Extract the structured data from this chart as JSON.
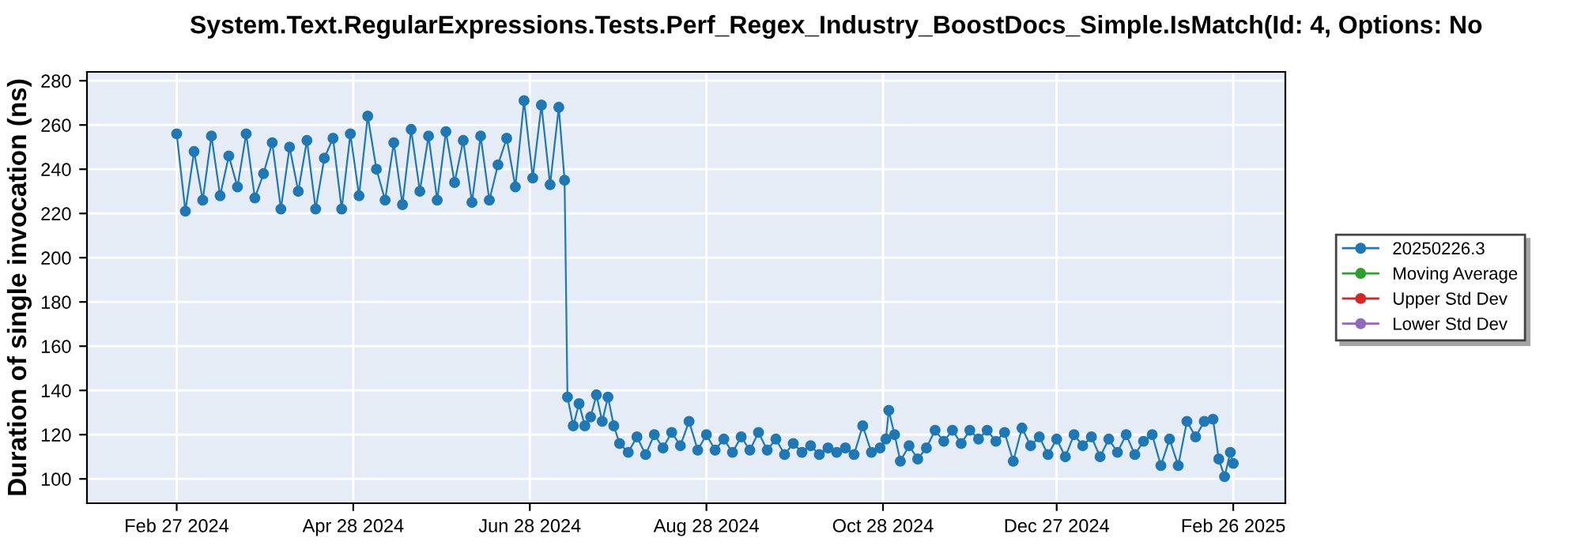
{
  "chart_data": {
    "type": "line",
    "title": "System.Text.RegularExpressions.Tests.Perf_Regex_Industry_BoostDocs_Simple.IsMatch(Id: 4, Options: No",
    "ylabel": "Duration of single invocation (ns)",
    "xlim": [
      "2024-01-27",
      "2025-03-16"
    ],
    "ylim": [
      89,
      284
    ],
    "xticks": [
      {
        "value": "2024-02-27",
        "label": "Feb 27 2024"
      },
      {
        "value": "2024-04-28",
        "label": "Apr 28 2024"
      },
      {
        "value": "2024-06-28",
        "label": "Jun 28 2024"
      },
      {
        "value": "2024-08-28",
        "label": "Aug 28 2024"
      },
      {
        "value": "2024-10-28",
        "label": "Oct 28 2024"
      },
      {
        "value": "2024-12-27",
        "label": "Dec 27 2024"
      },
      {
        "value": "2025-02-26",
        "label": "Feb 26 2025"
      }
    ],
    "yticks": [
      100,
      120,
      140,
      160,
      180,
      200,
      220,
      240,
      260,
      280
    ],
    "grid": true,
    "legend": "right",
    "marker": "circle",
    "line_style": "solid",
    "series": [
      {
        "name": "20250226.3",
        "color": "#1f77b4",
        "x": [
          "2024-02-27",
          "2024-03-01",
          "2024-03-04",
          "2024-03-07",
          "2024-03-10",
          "2024-03-13",
          "2024-03-16",
          "2024-03-19",
          "2024-03-22",
          "2024-03-25",
          "2024-03-28",
          "2024-03-31",
          "2024-04-03",
          "2024-04-06",
          "2024-04-09",
          "2024-04-12",
          "2024-04-15",
          "2024-04-18",
          "2024-04-21",
          "2024-04-24",
          "2024-04-27",
          "2024-04-30",
          "2024-05-03",
          "2024-05-06",
          "2024-05-09",
          "2024-05-12",
          "2024-05-15",
          "2024-05-18",
          "2024-05-21",
          "2024-05-24",
          "2024-05-27",
          "2024-05-30",
          "2024-06-02",
          "2024-06-05",
          "2024-06-08",
          "2024-06-11",
          "2024-06-14",
          "2024-06-17",
          "2024-06-20",
          "2024-06-23",
          "2024-06-26",
          "2024-06-29",
          "2024-07-02",
          "2024-07-05",
          "2024-07-08",
          "2024-07-10",
          "2024-07-11",
          "2024-07-13",
          "2024-07-15",
          "2024-07-17",
          "2024-07-19",
          "2024-07-21",
          "2024-07-23",
          "2024-07-25",
          "2024-07-27",
          "2024-07-29",
          "2024-08-01",
          "2024-08-04",
          "2024-08-07",
          "2024-08-10",
          "2024-08-13",
          "2024-08-16",
          "2024-08-19",
          "2024-08-22",
          "2024-08-25",
          "2024-08-28",
          "2024-08-31",
          "2024-09-03",
          "2024-09-06",
          "2024-09-09",
          "2024-09-12",
          "2024-09-15",
          "2024-09-18",
          "2024-09-21",
          "2024-09-24",
          "2024-09-27",
          "2024-09-30",
          "2024-10-03",
          "2024-10-06",
          "2024-10-09",
          "2024-10-12",
          "2024-10-15",
          "2024-10-18",
          "2024-10-21",
          "2024-10-24",
          "2024-10-27",
          "2024-10-29",
          "2024-10-30",
          "2024-11-01",
          "2024-11-03",
          "2024-11-06",
          "2024-11-09",
          "2024-11-12",
          "2024-11-15",
          "2024-11-18",
          "2024-11-21",
          "2024-11-24",
          "2024-11-27",
          "2024-11-30",
          "2024-12-03",
          "2024-12-06",
          "2024-12-09",
          "2024-12-12",
          "2024-12-15",
          "2024-12-18",
          "2024-12-21",
          "2024-12-24",
          "2024-12-27",
          "2024-12-30",
          "2025-01-02",
          "2025-01-05",
          "2025-01-08",
          "2025-01-11",
          "2025-01-14",
          "2025-01-17",
          "2025-01-20",
          "2025-01-23",
          "2025-01-26",
          "2025-01-29",
          "2025-02-01",
          "2025-02-04",
          "2025-02-07",
          "2025-02-10",
          "2025-02-13",
          "2025-02-16",
          "2025-02-19",
          "2025-02-21",
          "2025-02-23",
          "2025-02-25",
          "2025-02-26"
        ],
        "values": [
          256,
          221,
          248,
          226,
          255,
          228,
          246,
          232,
          256,
          227,
          238,
          252,
          222,
          250,
          230,
          253,
          222,
          245,
          254,
          222,
          256,
          228,
          264,
          240,
          226,
          252,
          224,
          258,
          230,
          255,
          226,
          257,
          234,
          253,
          225,
          255,
          226,
          242,
          254,
          232,
          271,
          236,
          269,
          233,
          268,
          235,
          137,
          124,
          134,
          124,
          128,
          138,
          126,
          137,
          124,
          116,
          112,
          119,
          111,
          120,
          114,
          121,
          115,
          126,
          113,
          120,
          113,
          118,
          112,
          119,
          113,
          121,
          113,
          118,
          111,
          116,
          112,
          115,
          111,
          114,
          112,
          114,
          111,
          124,
          112,
          114,
          118,
          131,
          120,
          108,
          115,
          109,
          114,
          122,
          117,
          122,
          116,
          122,
          118,
          122,
          117,
          121,
          108,
          123,
          115,
          119,
          111,
          118,
          110,
          120,
          115,
          119,
          110,
          118,
          112,
          120,
          111,
          117,
          120,
          106,
          118,
          106,
          126,
          119,
          126,
          127,
          109,
          101,
          112,
          107
        ]
      },
      {
        "name": "Moving Average",
        "color": "#2ca02c"
      },
      {
        "name": "Upper Std Dev",
        "color": "#d62728"
      },
      {
        "name": "Lower Std Dev",
        "color": "#9467bd"
      }
    ]
  }
}
